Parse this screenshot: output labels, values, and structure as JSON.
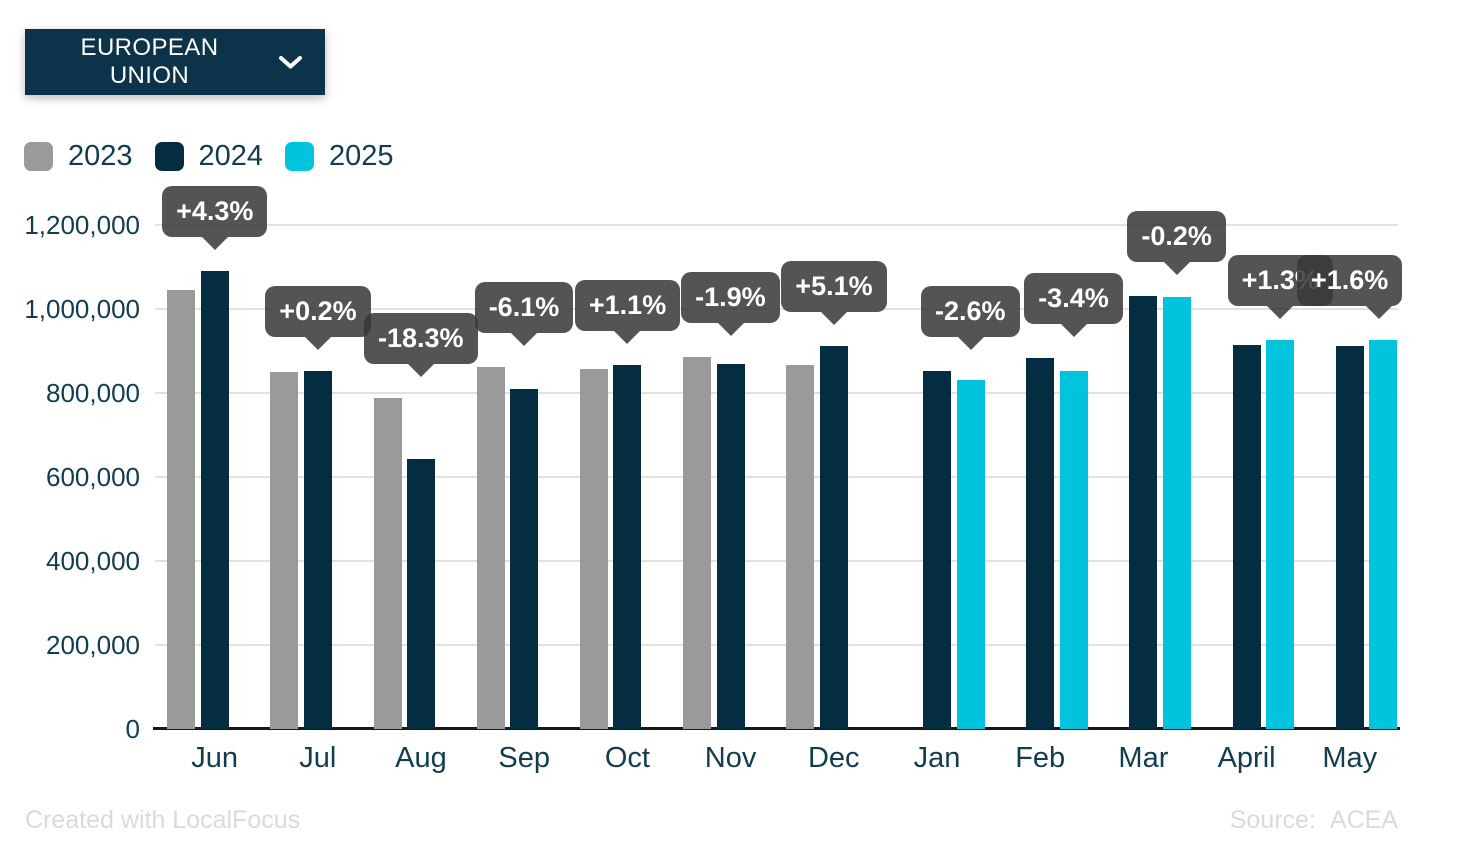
{
  "dropdown": {
    "label": "EUROPEAN UNION"
  },
  "legend": {
    "items": [
      {
        "label": "2023",
        "color": "#9a9a9a"
      },
      {
        "label": "2024",
        "color": "#042d42"
      },
      {
        "label": "2025",
        "color": "#00c4dd"
      }
    ]
  },
  "chart_data": {
    "type": "bar",
    "title": "",
    "categories": [
      "Jun",
      "Jul",
      "Aug",
      "Sep",
      "Oct",
      "Nov",
      "Dec",
      "Jan",
      "Feb",
      "Mar",
      "April",
      "May"
    ],
    "series": [
      {
        "name": "2023",
        "color": "#9a9a9a",
        "values": [
          1045000,
          850000,
          788000,
          861000,
          857000,
          885000,
          867000,
          null,
          null,
          null,
          null,
          null
        ]
      },
      {
        "name": "2024",
        "color": "#042d42",
        "values": [
          1090000,
          852000,
          644000,
          809000,
          866000,
          868000,
          911000,
          853000,
          883000,
          1031000,
          914000,
          911000
        ]
      },
      {
        "name": "2025",
        "color": "#00c4dd",
        "values": [
          null,
          null,
          null,
          null,
          null,
          null,
          null,
          831000,
          853000,
          1029000,
          926000,
          926000
        ]
      }
    ],
    "percent_change_labels": [
      "+4.3%",
      "+0.2%",
      "-18.3%",
      "-6.1%",
      "+1.1%",
      "-1.9%",
      "+5.1%",
      "-2.6%",
      "-3.4%",
      "-0.2%",
      "+1.3%",
      "+1.6%"
    ],
    "ylim": [
      0,
      1200000
    ],
    "ytick_values": [
      0,
      200000,
      400000,
      600000,
      800000,
      1000000,
      1200000
    ],
    "ytick_labels": [
      "0",
      "200,000",
      "400,000",
      "600,000",
      "800,000",
      "1,000,000",
      "1,200,000"
    ],
    "grid": true,
    "legend_position": "top-left",
    "callout_bg": "#58585a",
    "axis_text_color": "#113c52"
  },
  "footer": {
    "credit": "Created with LocalFocus",
    "source_label": "Source:",
    "source_value": "ACEA"
  }
}
